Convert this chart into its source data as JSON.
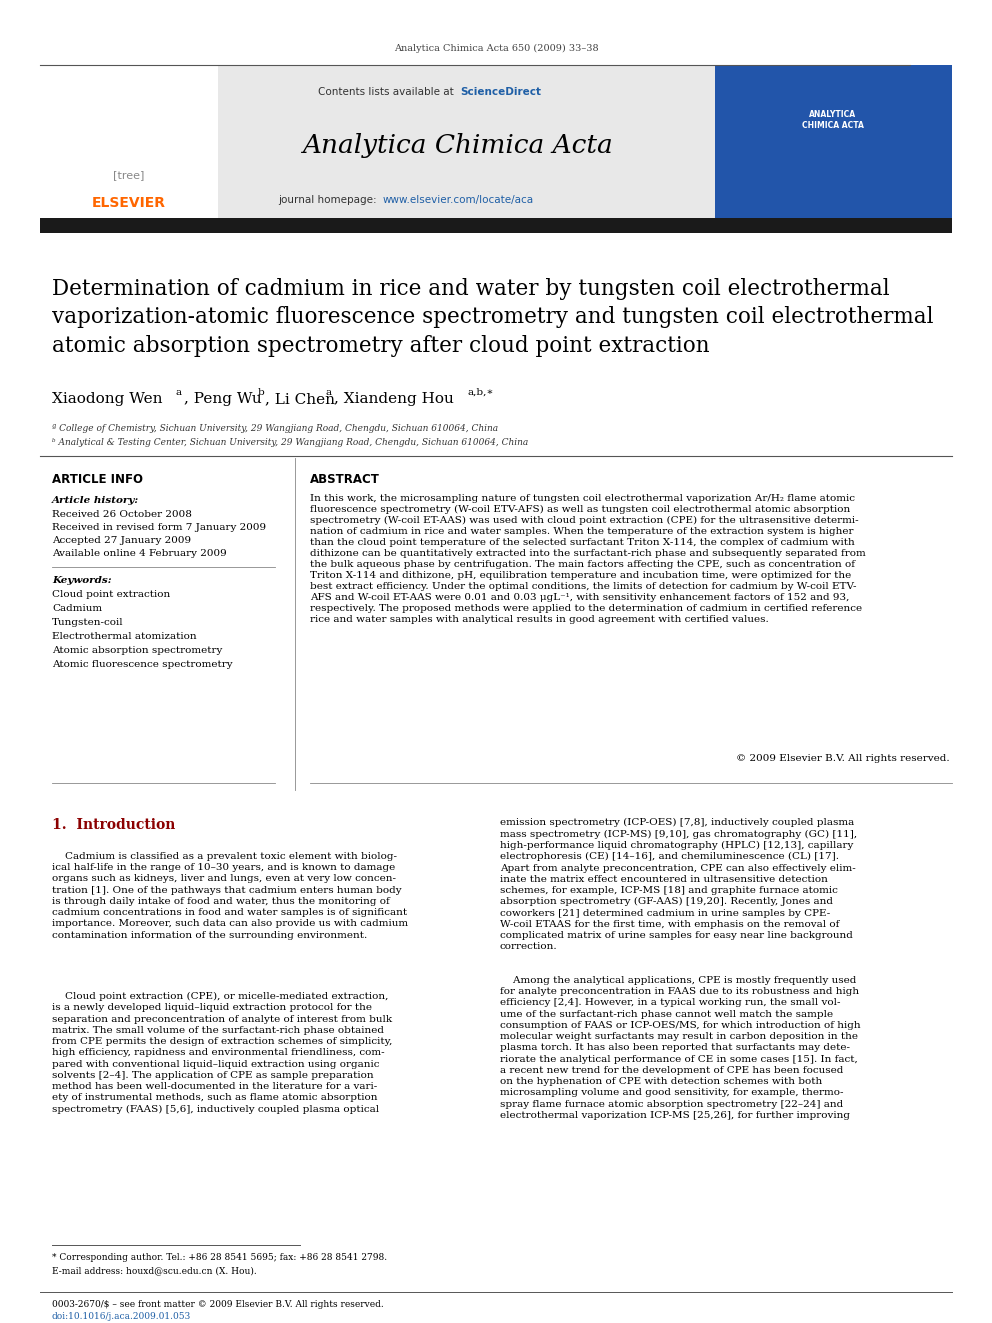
{
  "page_width": 9.92,
  "page_height": 13.23,
  "bg_color": "#ffffff",
  "journal_ref": "Analytica Chimica Acta 650 (2009) 33–38",
  "contents_text": "Contents lists available at ",
  "sciencedirect_text": "ScienceDirect",
  "journal_name": "Analytica Chimica Acta",
  "homepage_text": "journal homepage: ",
  "homepage_url": "www.elsevier.com/locate/aca",
  "header_bg": "#e8e8e8",
  "black_bar_color": "#1a1a1a",
  "elsevier_color": "#ff6600",
  "sciencedirect_color": "#1f5fa6",
  "url_color": "#1f5fa6",
  "article_title": "Determination of cadmium in rice and water by tungsten coil electrothermal\nvaporization-atomic fluorescence spectrometry and tungsten coil electrothermal\natomic absorption spectrometry after cloud point extraction",
  "authors": "Xiaodong Wen",
  "affil_a": "ª College of Chemistry, Sichuan University, 29 Wangjiang Road, Chengdu, Sichuan 610064, China",
  "affil_b": "ᵇ Analytical & Testing Center, Sichuan University, 29 Wangjiang Road, Chengdu, Sichuan 610064, China",
  "section_article_info": "ARTICLE INFO",
  "section_abstract": "ABSTRACT",
  "article_history_label": "Article history:",
  "history_lines": [
    "Received 26 October 2008",
    "Received in revised form 7 January 2009",
    "Accepted 27 January 2009",
    "Available online 4 February 2009"
  ],
  "keywords_label": "Keywords:",
  "keywords": [
    "Cloud point extraction",
    "Cadmium",
    "Tungsten-coil",
    "Electrothermal atomization",
    "Atomic absorption spectrometry",
    "Atomic fluorescence spectrometry"
  ],
  "abstract_text": "In this work, the microsampling nature of tungsten coil electrothermal vaporization Ar/H₂ flame atomic\nfluorescence spectrometry (W-coil ETV-AFS) as well as tungsten coil electrothermal atomic absorption\nspectrometry (W-coil ET-AAS) was used with cloud point extraction (CPE) for the ultrasensitive determi-\nnation of cadmium in rice and water samples. When the temperature of the extraction system is higher\nthan the cloud point temperature of the selected surfactant Triton X-114, the complex of cadmium with\ndithizone can be quantitatively extracted into the surfactant-rich phase and subsequently separated from\nthe bulk aqueous phase by centrifugation. The main factors affecting the CPE, such as concentration of\nTriton X-114 and dithizone, pH, equilibration temperature and incubation time, were optimized for the\nbest extract efficiency. Under the optimal conditions, the limits of detection for cadmium by W-coil ETV-\nAFS and W-coil ET-AAS were 0.01 and 0.03 μgL⁻¹, with sensitivity enhancement factors of 152 and 93,\nrespectively. The proposed methods were applied to the determination of cadmium in certified reference\nrice and water samples with analytical results in good agreement with certified values.",
  "copyright_text": "© 2009 Elsevier B.V. All rights reserved.",
  "intro_section": "1.  Introduction",
  "intro_color": "#8B0000",
  "intro_para1": "    Cadmium is classified as a prevalent toxic element with biolog-\nical half-life in the range of 10–30 years, and is known to damage\norgans such as kidneys, liver and lungs, even at very low concen-\ntration [1]. One of the pathways that cadmium enters human body\nis through daily intake of food and water, thus the monitoring of\ncadmium concentrations in food and water samples is of significant\nimportance. Moreover, such data can also provide us with cadmium\ncontamination information of the surrounding environment.",
  "intro_para2": "    Cloud point extraction (CPE), or micelle-mediated extraction,\nis a newly developed liquid–liquid extraction protocol for the\nseparation and preconcentration of analyte of interest from bulk\nmatrix. The small volume of the surfactant-rich phase obtained\nfrom CPE permits the design of extraction schemes of simplicity,\nhigh efficiency, rapidness and environmental friendliness, com-\npared with conventional liquid–liquid extraction using organic\nsolvents [2–4]. The application of CPE as sample preparation\nmethod has been well-documented in the literature for a vari-\nety of instrumental methods, such as flame atomic absorption\nspectrometry (FAAS) [5,6], inductively coupled plasma optical",
  "right_col_intro": "emission spectrometry (ICP-OES) [7,8], inductively coupled plasma\nmass spectrometry (ICP-MS) [9,10], gas chromatography (GC) [11],\nhigh-performance liquid chromatography (HPLC) [12,13], capillary\nelectrophoresis (CE) [14–16], and chemiluminescence (CL) [17].\nApart from analyte preconcentration, CPE can also effectively elim-\ninate the matrix effect encountered in ultrasensitive detection\nschemes, for example, ICP-MS [18] and graphite furnace atomic\nabsorption spectrometry (GF-AAS) [19,20]. Recently, Jones and\ncoworkers [21] determined cadmium in urine samples by CPE-\nW-coil ETAAS for the first time, with emphasis on the removal of\ncomplicated matrix of urine samples for easy near line background\ncorrection.",
  "right_col_intro2": "    Among the analytical applications, CPE is mostly frequently used\nfor analyte preconcentration in FAAS due to its robustness and high\nefficiency [2,4]. However, in a typical working run, the small vol-\nume of the surfactant-rich phase cannot well match the sample\nconsumption of FAAS or ICP-OES/MS, for which introduction of high\nmolecular weight surfactants may result in carbon deposition in the\nplasma torch. It has also been reported that surfactants may dete-\nriorate the analytical performance of CE in some cases [15]. In fact,\na recent new trend for the development of CPE has been focused\non the hyphenation of CPE with detection schemes with both\nmicrosampling volume and good sensitivity, for example, thermo-\nspray flame furnace atomic absorption spectrometry [22–24] and\nelectrothermal vaporization ICP-MS [25,26], for further improving",
  "footnote_star": "* Corresponding author. Tel.: +86 28 8541 5695; fax: +86 28 8541 2798.",
  "footnote_email": "E-mail address: houxd@scu.edu.cn (X. Hou).",
  "footer_left": "0003-2670/$ – see front matter © 2009 Elsevier B.V. All rights reserved.",
  "footer_doi": "doi:10.1016/j.aca.2009.01.053"
}
